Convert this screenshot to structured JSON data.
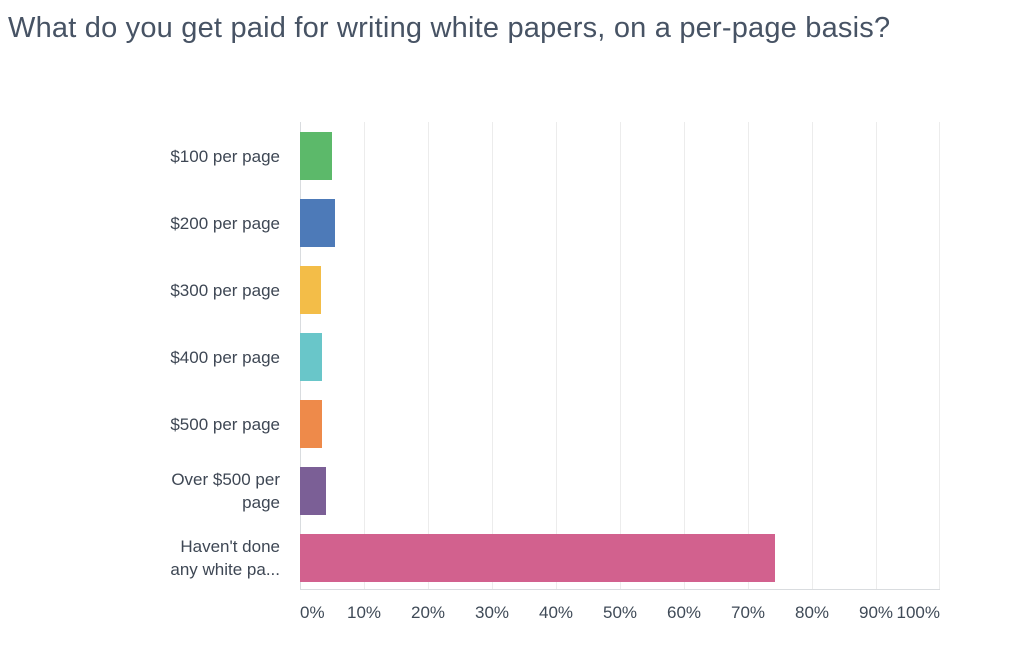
{
  "chart_data": {
    "type": "bar",
    "orientation": "horizontal",
    "title": "What do you get paid for writing white papers, on a per-page basis?",
    "categories": [
      "$100 per page",
      "$200 per page",
      "$300 per page",
      "$400 per page",
      "$500 per page",
      "Over $500 per page",
      "Haven't done any white pa..."
    ],
    "category_display_lines": [
      [
        "$100 per page"
      ],
      [
        "$200 per page"
      ],
      [
        "$300 per page"
      ],
      [
        "$400 per page"
      ],
      [
        "$500 per page"
      ],
      [
        "Over $500 per",
        "page"
      ],
      [
        "Haven't done",
        "any white pa..."
      ]
    ],
    "values": [
      5.0,
      5.5,
      3.3,
      3.4,
      3.4,
      4.1,
      74.2
    ],
    "unit": "%",
    "xlim": [
      0,
      100
    ],
    "x_ticks": [
      "0%",
      "10%",
      "20%",
      "30%",
      "40%",
      "50%",
      "60%",
      "70%",
      "80%",
      "90%",
      "100%"
    ],
    "grid": "vertical-only",
    "legend": "none",
    "bar_colors": [
      "#5cb96a",
      "#4d7ab8",
      "#f3bd48",
      "#69c6c9",
      "#ee8a4a",
      "#7b5f96",
      "#d2618e"
    ]
  },
  "colors": {
    "background": "#ffffff",
    "title_text": "#475364",
    "category_text": "#3e4754",
    "tick_text": "#3f4a57",
    "gridline": "#ececec",
    "axis_line": "#d9dcdf"
  }
}
